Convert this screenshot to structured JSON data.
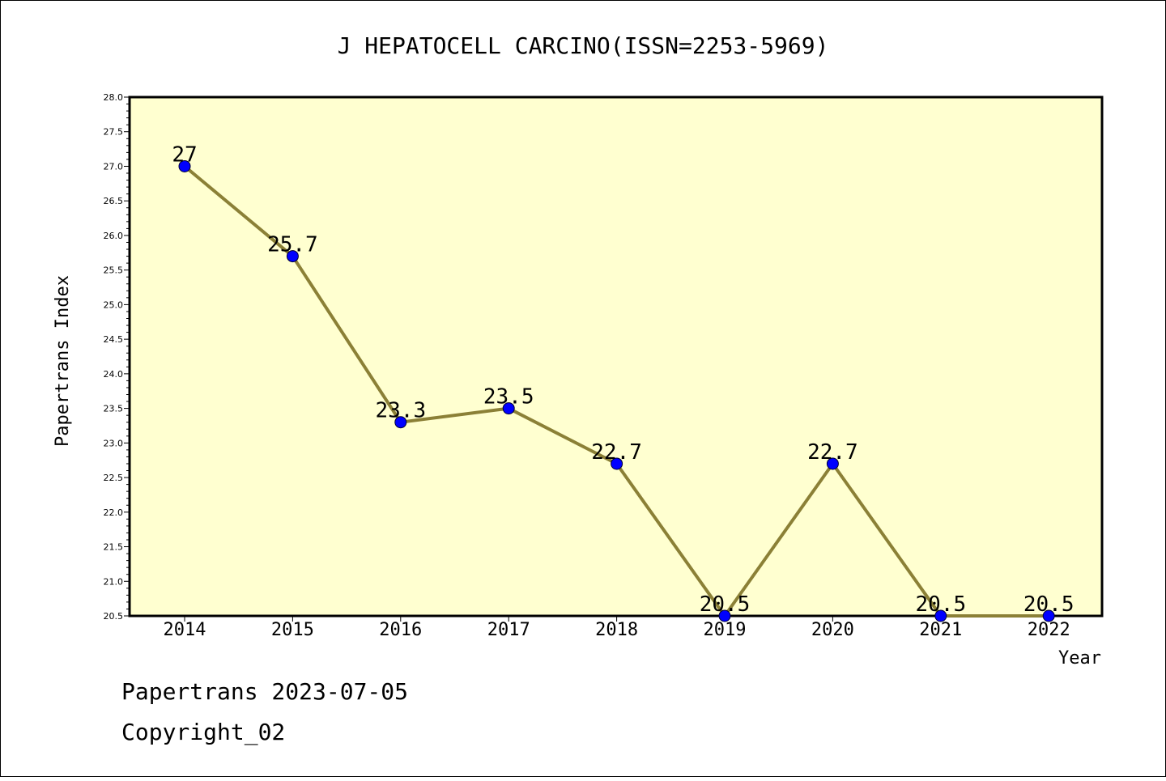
{
  "chart_data": {
    "type": "line",
    "title": "J HEPATOCELL CARCINO(ISSN=2253-5969)",
    "xlabel": "Year",
    "ylabel": "Papertrans Index",
    "categories": [
      "2014",
      "2015",
      "2016",
      "2017",
      "2018",
      "2019",
      "2020",
      "2021",
      "2022"
    ],
    "values": [
      27,
      25.7,
      23.3,
      23.5,
      22.7,
      20.5,
      22.7,
      20.5,
      20.5
    ],
    "data_labels": [
      "27",
      "25.7",
      "23.3",
      "23.5",
      "22.7",
      "20.5",
      "22.7",
      "20.5",
      "20.5"
    ],
    "ylim": [
      20.5,
      28.0
    ],
    "yticks": [
      "20.5",
      "21.0",
      "21.5",
      "22.0",
      "22.5",
      "23.0",
      "23.5",
      "24.0",
      "24.5",
      "25.0",
      "25.5",
      "26.0",
      "26.5",
      "27.0",
      "27.5",
      "28.0"
    ],
    "grid": false,
    "colors": {
      "plot_background": "#ffffd0",
      "line": "#8b8036",
      "marker": "#0000ff"
    }
  },
  "footer": {
    "line1": "Papertrans 2023-07-05",
    "line2": "Copyright_02"
  }
}
